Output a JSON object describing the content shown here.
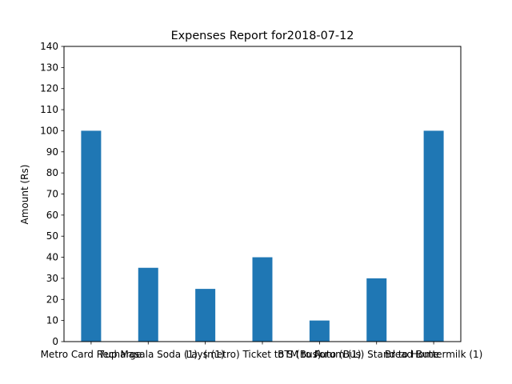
{
  "chart_data": {
    "type": "bar",
    "title": "Expenses Report for2018-07-12",
    "xlabel": "",
    "ylabel": "Amount (Rs)",
    "ylim": [
      0,
      140
    ],
    "yticks": [
      0,
      10,
      20,
      30,
      40,
      50,
      60,
      70,
      80,
      90,
      100,
      110,
      120,
      130,
      140
    ],
    "grid": false,
    "categories": [
      "Metro Card Recharge",
      "7up Masala Soda (1)",
      "Lays (1)",
      "(metro) Ticket to S (Bus)",
      "BTM to Forum (1)",
      "Auto (Bus) Stand to Home",
      "Bread Buttermilk (1)"
    ],
    "category_labels_raw": "Metro Card Recharge 7up Masala Soda (1) Lays (1) (metro) Ticket to S (Bus) BTM to Forum (1) Auto (Bus) Stand to Home Bread Buttermilk (1)",
    "values": [
      100,
      35,
      25,
      40,
      10,
      30,
      100
    ],
    "bar_color": "#1f77b4"
  }
}
